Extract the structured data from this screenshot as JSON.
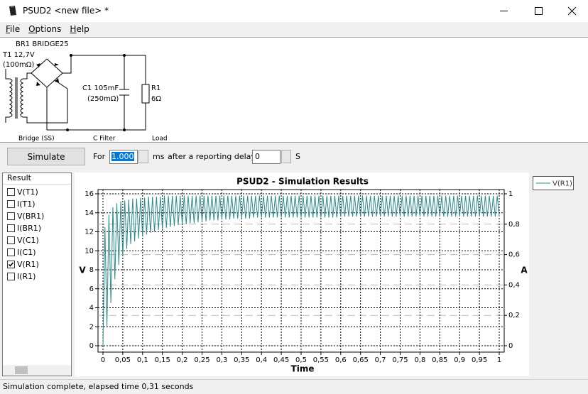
{
  "window": {
    "title": "PSUD2  <new file> *"
  },
  "menu": [
    "File",
    "Options",
    "Help"
  ],
  "circuit": {
    "bridge_label": "BR1 BRIDGE25",
    "transformer_label": "T1 12,7V",
    "transformer_resistance": "(100mΩ)",
    "capacitor_label": "C1 105mF",
    "capacitor_resistance": "(250mΩ)",
    "resistor_label": "R1",
    "resistor_value": "6Ω",
    "section_labels": [
      "Bridge (SS)",
      "C Filter",
      "Load"
    ]
  },
  "toolbar": {
    "button": "Simulate",
    "for_label": "For",
    "duration": "1.000",
    "duration_unit": "ms",
    "delay_label": "after a reporting delay of",
    "delay": "0",
    "delay_unit": "S"
  },
  "results": {
    "header": "Result",
    "items": [
      {
        "label": "V(T1)",
        "checked": false
      },
      {
        "label": "I(T1)",
        "checked": false
      },
      {
        "label": "V(BR1)",
        "checked": false
      },
      {
        "label": "I(BR1)",
        "checked": false
      },
      {
        "label": "V(C1)",
        "checked": false
      },
      {
        "label": "I(C1)",
        "checked": false
      },
      {
        "label": "V(R1)",
        "checked": true
      },
      {
        "label": "I(R1)",
        "checked": false
      }
    ]
  },
  "chart_data": {
    "type": "line",
    "title": "PSUD2 - Simulation Results",
    "xlabel": "Time",
    "ylabel": "V",
    "y2label": "A",
    "x": [
      0,
      0.005,
      0.01,
      0.015,
      0.02,
      0.025,
      0.03,
      0.035,
      0.04,
      0.045,
      0.05,
      0.055,
      0.06,
      0.065,
      0.07,
      0.075,
      0.08,
      0.085,
      0.09,
      0.095,
      0.1,
      0.105,
      0.11,
      0.115,
      0.12,
      0.125,
      0.13,
      0.135,
      0.14,
      0.145,
      0.15,
      0.155,
      0.16,
      0.165,
      0.17,
      0.175,
      0.18,
      0.185,
      0.19,
      0.195,
      0.2,
      0.205,
      0.21,
      0.215,
      0.22,
      0.225,
      0.23,
      0.235,
      0.24,
      0.245,
      0.25,
      0.255,
      0.26,
      0.265,
      0.27,
      0.275,
      0.28,
      0.285,
      0.29,
      0.295,
      0.3,
      0.305,
      0.31,
      0.315,
      0.32,
      0.325,
      0.33,
      0.335,
      0.34,
      0.345,
      0.35,
      0.355,
      0.36,
      0.365,
      0.37,
      0.375,
      0.38,
      0.385,
      0.39,
      0.395,
      0.4,
      0.405,
      0.41,
      0.415,
      0.42,
      0.425,
      0.43,
      0.435,
      0.44,
      0.445,
      0.45,
      0.455,
      0.46,
      0.465,
      0.47,
      0.475,
      0.48,
      0.485,
      0.49,
      0.495,
      0.5,
      0.505,
      0.51,
      0.515,
      0.52,
      0.525,
      0.53,
      0.535,
      0.54,
      0.545,
      0.55,
      0.555,
      0.56,
      0.565,
      0.57,
      0.575,
      0.58,
      0.585,
      0.59,
      0.595,
      0.6,
      0.605,
      0.61,
      0.615,
      0.62,
      0.625,
      0.63,
      0.635,
      0.64,
      0.645,
      0.65,
      0.655,
      0.66,
      0.665,
      0.67,
      0.675,
      0.68,
      0.685,
      0.69,
      0.695,
      0.7,
      0.705,
      0.71,
      0.715,
      0.72,
      0.725,
      0.73,
      0.735,
      0.74,
      0.745,
      0.75,
      0.755,
      0.76,
      0.765,
      0.77,
      0.775,
      0.78,
      0.785,
      0.79,
      0.795,
      0.8,
      0.805,
      0.81,
      0.815,
      0.82,
      0.825,
      0.83,
      0.835,
      0.84,
      0.845,
      0.85,
      0.855,
      0.86,
      0.865,
      0.87,
      0.875,
      0.88,
      0.885,
      0.89,
      0.895,
      0.9,
      0.905,
      0.91,
      0.915,
      0.92,
      0.925,
      0.93,
      0.935,
      0.94,
      0.945,
      0.95,
      0.955,
      0.96,
      0.965,
      0.97,
      0.975,
      0.98,
      0.985,
      0.99,
      0.995,
      1
    ],
    "series": [
      {
        "name": "V(R1)",
        "color": "#2b8a8a",
        "values": [
          0,
          12.5,
          2,
          13.8,
          4.5,
          14.6,
          7,
          15,
          8.5,
          15.2,
          9.5,
          15.3,
          10.2,
          15.4,
          10.7,
          15.5,
          11,
          15.5,
          11.3,
          15.6,
          11.5,
          15.6,
          11.7,
          15.7,
          11.9,
          15.7,
          12,
          15.7,
          12.2,
          15.7,
          12.3,
          15.8,
          12.4,
          15.8,
          12.5,
          15.8,
          12.6,
          15.8,
          12.7,
          15.8,
          12.8,
          15.8,
          12.8,
          15.8,
          12.9,
          15.8,
          12.9,
          15.8,
          13,
          15.8,
          13.1,
          15.8,
          13.1,
          15.8,
          13.2,
          15.8,
          13.2,
          15.8,
          13.2,
          15.8,
          13.3,
          15.8,
          13.3,
          15.8,
          13.3,
          15.8,
          13.4,
          15.8,
          13.4,
          15.8,
          13.4,
          15.8,
          13.4,
          15.8,
          13.4,
          15.8,
          13.5,
          15.8,
          13.5,
          15.8,
          13.5,
          15.8,
          13.5,
          15.8,
          13.5,
          15.8,
          13.5,
          15.8,
          13.5,
          15.8,
          13.5,
          15.8,
          13.5,
          15.8,
          13.5,
          15.8,
          13.5,
          15.8,
          13.5,
          15.8,
          13.5,
          15.8,
          13.5,
          15.8,
          13.5,
          15.8,
          13.5,
          15.8,
          13.5,
          15.8,
          13.5,
          15.8,
          13.5,
          15.8,
          13.5,
          15.8,
          13.5,
          15.8,
          13.5,
          15.8,
          13.6,
          15.8,
          13.6,
          15.8,
          13.6,
          15.8,
          13.6,
          15.8,
          13.6,
          15.8,
          13.6,
          15.8,
          13.6,
          15.8,
          13.6,
          15.8,
          13.6,
          15.8,
          13.6,
          15.8,
          13.6,
          15.8,
          13.6,
          15.8,
          13.6,
          15.8,
          13.6,
          15.8,
          13.6,
          15.8,
          13.6,
          15.8,
          13.6,
          15.8,
          13.6,
          15.8,
          13.6,
          15.8,
          13.6,
          15.8,
          13.6,
          15.8,
          13.6,
          15.8,
          13.6,
          15.8,
          13.6,
          15.8,
          13.6,
          15.8,
          13.6,
          15.8,
          13.6,
          15.8,
          13.6,
          15.8,
          13.6,
          15.8,
          13.6,
          15.8,
          13.6,
          15.8,
          13.6,
          15.8,
          13.6,
          15.8,
          13.6,
          15.8,
          13.6,
          15.8,
          13.6,
          15.8,
          13.6,
          15.8,
          13.6,
          15.8,
          13.6,
          15.8,
          13.6,
          15.8,
          13.6
        ]
      }
    ],
    "xlim": [
      0,
      1
    ],
    "ylim": [
      0,
      16
    ],
    "y2lim": [
      0,
      1
    ],
    "xticks": [
      0,
      {
        "value": 0.05,
        "label": "0,05"
      },
      {
        "value": 0.1,
        "label": "0,1"
      },
      {
        "value": 0.15,
        "label": "0,15"
      },
      {
        "value": 0.2,
        "label": "0,2"
      },
      {
        "value": 0.25,
        "label": "0,25"
      },
      {
        "value": 0.3,
        "label": "0,3"
      },
      {
        "value": 0.35,
        "label": "0,35"
      },
      {
        "value": 0.4,
        "label": "0,4"
      },
      {
        "value": 0.45,
        "label": "0,45"
      },
      {
        "value": 0.5,
        "label": "0,5"
      },
      {
        "value": 0.55,
        "label": "0,55"
      },
      {
        "value": 0.6,
        "label": "0,6"
      },
      {
        "value": 0.65,
        "label": "0,65"
      },
      {
        "value": 0.7,
        "label": "0,7"
      },
      {
        "value": 0.75,
        "label": "0,75"
      },
      {
        "value": 0.8,
        "label": "0,8"
      },
      {
        "value": 0.85,
        "label": "0,85"
      },
      {
        "value": 0.9,
        "label": "0,9"
      },
      {
        "value": 0.95,
        "label": "0,95"
      },
      1
    ],
    "yticks": [
      0,
      2,
      4,
      6,
      8,
      10,
      12,
      14,
      16
    ],
    "y2ticks": [
      0,
      {
        "value": 0.2,
        "label": "0,2"
      },
      {
        "value": 0.4,
        "label": "0,4"
      },
      {
        "value": 0.6,
        "label": "0,6"
      },
      {
        "value": 0.8,
        "label": "0,8"
      },
      1
    ],
    "grid": true,
    "y2grid": true,
    "legend": "right"
  },
  "status": "Simulation complete, elapsed time 0,31 seconds"
}
